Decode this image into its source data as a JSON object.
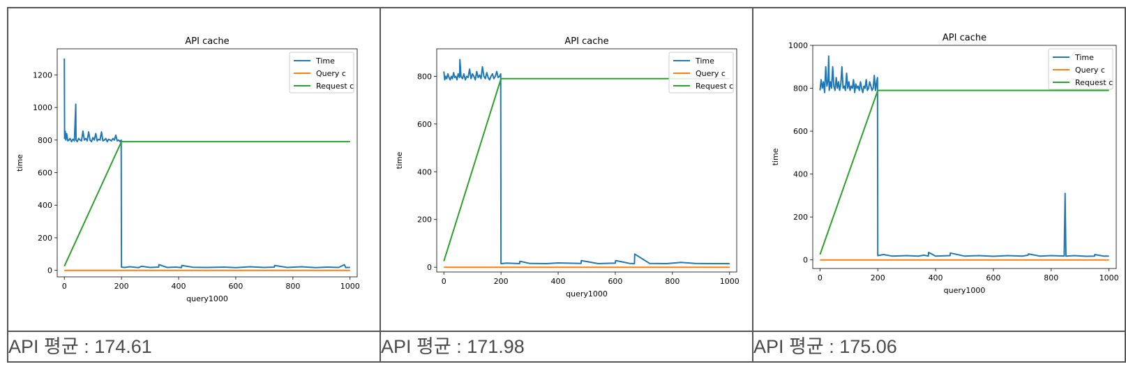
{
  "chart_data": [
    {
      "type": "line",
      "title": "API cache",
      "xlabel": "query1000",
      "ylabel": "time",
      "xlim": [
        -25,
        1025
      ],
      "ylim": [
        -40,
        1360
      ],
      "xticks": [
        0,
        200,
        400,
        600,
        800,
        1000
      ],
      "yticks": [
        0,
        200,
        400,
        600,
        800,
        1000,
        1200
      ],
      "legend": "top-right",
      "grid": false,
      "series": [
        {
          "name": "Time",
          "color": "#1f77b4",
          "x": [
            0,
            1,
            3,
            5,
            8,
            12,
            16,
            20,
            25,
            30,
            35,
            40,
            41,
            45,
            50,
            55,
            60,
            65,
            70,
            75,
            80,
            85,
            90,
            95,
            100,
            105,
            110,
            115,
            120,
            125,
            130,
            135,
            140,
            145,
            150,
            155,
            160,
            165,
            170,
            175,
            180,
            185,
            190,
            195,
            199,
            200,
            210,
            230,
            260,
            270,
            300,
            330,
            331,
            360,
            390,
            410,
            411,
            450,
            500,
            560,
            600,
            650,
            700,
            735,
            736,
            780,
            830,
            880,
            920,
            960,
            980,
            985,
            990,
            1000
          ],
          "y": [
            1300,
            810,
            855,
            800,
            840,
            795,
            800,
            810,
            790,
            805,
            795,
            1020,
            800,
            790,
            810,
            800,
            795,
            855,
            800,
            810,
            795,
            850,
            800,
            790,
            815,
            800,
            840,
            795,
            805,
            800,
            850,
            795,
            800,
            810,
            790,
            805,
            800,
            795,
            810,
            800,
            830,
            795,
            800,
            790,
            800,
            20,
            18,
            22,
            17,
            25,
            18,
            20,
            35,
            18,
            20,
            17,
            30,
            19,
            18,
            20,
            17,
            22,
            18,
            20,
            30,
            18,
            22,
            17,
            20,
            18,
            35,
            17,
            18,
            18
          ]
        },
        {
          "name": "Query c",
          "color": "#ff7f0e",
          "x": [
            0,
            1000
          ],
          "y": [
            0,
            0
          ]
        },
        {
          "name": "Request c",
          "color": "#2ca02c",
          "x": [
            0,
            200,
            1000
          ],
          "y": [
            25,
            790,
            790
          ]
        }
      ]
    },
    {
      "type": "line",
      "title": "API cache",
      "xlabel": "query1000",
      "ylabel": "time",
      "xlim": [
        -25,
        1025
      ],
      "ylim": [
        -20,
        915
      ],
      "xticks": [
        0,
        200,
        400,
        600,
        800,
        1000
      ],
      "yticks": [
        0,
        200,
        400,
        600,
        800
      ],
      "legend": "top-right",
      "grid": false,
      "series": [
        {
          "name": "Time",
          "color": "#1f77b4",
          "x": [
            0,
            3,
            6,
            10,
            14,
            18,
            22,
            26,
            30,
            34,
            38,
            42,
            46,
            50,
            55,
            56,
            60,
            65,
            70,
            75,
            80,
            85,
            90,
            95,
            100,
            105,
            110,
            115,
            120,
            125,
            130,
            135,
            140,
            145,
            150,
            155,
            160,
            165,
            170,
            175,
            180,
            185,
            190,
            195,
            199,
            200,
            220,
            265,
            266,
            300,
            360,
            400,
            480,
            481,
            540,
            600,
            601,
            650,
            667,
            668,
            720,
            780,
            830,
            880,
            940,
            1000
          ],
          "y": [
            820,
            785,
            800,
            790,
            810,
            795,
            785,
            800,
            790,
            815,
            795,
            800,
            785,
            810,
            795,
            870,
            800,
            790,
            810,
            785,
            800,
            795,
            830,
            790,
            810,
            800,
            785,
            820,
            795,
            805,
            790,
            840,
            800,
            790,
            815,
            795,
            785,
            800,
            810,
            790,
            800,
            820,
            795,
            800,
            810,
            15,
            17,
            15,
            25,
            16,
            15,
            18,
            16,
            28,
            15,
            17,
            28,
            16,
            15,
            55,
            16,
            15,
            20,
            16,
            15,
            15
          ]
        },
        {
          "name": "Query c",
          "color": "#ff7f0e",
          "x": [
            0,
            1000
          ],
          "y": [
            0,
            0
          ]
        },
        {
          "name": "Request c",
          "color": "#2ca02c",
          "x": [
            0,
            200,
            1000
          ],
          "y": [
            25,
            790,
            790
          ]
        }
      ]
    },
    {
      "type": "line",
      "title": "API cache",
      "xlabel": "query1000",
      "ylabel": "time",
      "xlim": [
        -25,
        1025
      ],
      "ylim": [
        -40,
        1000
      ],
      "xticks": [
        0,
        200,
        400,
        600,
        800,
        1000
      ],
      "yticks": [
        0,
        200,
        400,
        600,
        800,
        1000
      ],
      "legend": "top-right",
      "grid": false,
      "series": [
        {
          "name": "Time",
          "color": "#1f77b4",
          "x": [
            0,
            4,
            8,
            12,
            16,
            20,
            24,
            28,
            30,
            32,
            36,
            40,
            44,
            48,
            52,
            56,
            60,
            64,
            68,
            72,
            76,
            80,
            84,
            88,
            92,
            96,
            100,
            104,
            108,
            112,
            116,
            120,
            124,
            128,
            132,
            136,
            140,
            144,
            148,
            152,
            156,
            160,
            164,
            168,
            172,
            176,
            180,
            184,
            188,
            192,
            196,
            199,
            200,
            220,
            250,
            300,
            340,
            360,
            375,
            376,
            400,
            450,
            451,
            500,
            550,
            600,
            650,
            700,
            720,
            721,
            760,
            800,
            845,
            848,
            851,
            880,
            920,
            950,
            951,
            980,
            1000
          ],
          "y": [
            790,
            840,
            800,
            830,
            780,
            900,
            810,
            840,
            950,
            790,
            830,
            800,
            900,
            810,
            790,
            850,
            800,
            830,
            790,
            820,
            900,
            800,
            810,
            790,
            870,
            800,
            830,
            790,
            810,
            800,
            840,
            780,
            820,
            800,
            810,
            790,
            830,
            800,
            780,
            810,
            800,
            840,
            790,
            800,
            830,
            810,
            790,
            800,
            860,
            790,
            830,
            850,
            20,
            25,
            18,
            20,
            18,
            22,
            18,
            35,
            18,
            20,
            32,
            18,
            20,
            17,
            20,
            18,
            22,
            28,
            18,
            20,
            18,
            310,
            18,
            20,
            17,
            18,
            25,
            18,
            18
          ]
        },
        {
          "name": "Query c",
          "color": "#ff7f0e",
          "x": [
            0,
            1000
          ],
          "y": [
            0,
            0
          ]
        },
        {
          "name": "Request c",
          "color": "#2ca02c",
          "x": [
            0,
            200,
            1000
          ],
          "y": [
            25,
            790,
            790
          ]
        }
      ]
    }
  ],
  "captions": [
    "API 평균 : 174.61",
    "API 평균 : 171.98",
    "API 평균 : 175.06"
  ]
}
